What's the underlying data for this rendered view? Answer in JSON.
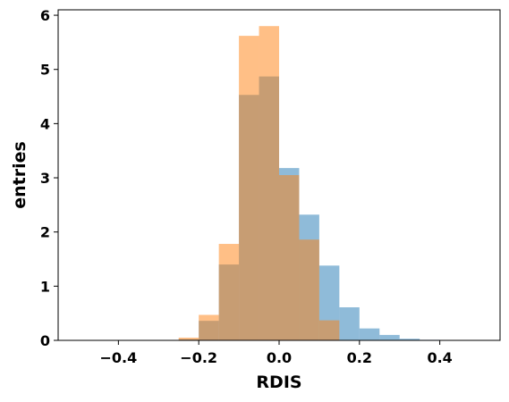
{
  "chart_data": {
    "type": "bar",
    "title": "",
    "xlabel": "RDIS",
    "ylabel": "entries",
    "xlim": [
      -0.55,
      0.55
    ],
    "ylim": [
      0,
      6.1
    ],
    "xticks": [
      -0.4,
      -0.2,
      0.0,
      0.2,
      0.4
    ],
    "xtick_labels": [
      "−0.4",
      "−0.2",
      "0.0",
      "0.2",
      "0.4"
    ],
    "yticks": [
      0,
      1,
      2,
      3,
      4,
      5,
      6
    ],
    "ytick_labels": [
      "0",
      "1",
      "2",
      "3",
      "4",
      "5",
      "6"
    ],
    "grid": false,
    "legend": false,
    "bin_edges": [
      -0.5,
      -0.45,
      -0.4,
      -0.35,
      -0.3,
      -0.25,
      -0.2,
      -0.15,
      -0.1,
      -0.05,
      0.0,
      0.05,
      0.1,
      0.15,
      0.2,
      0.25,
      0.3,
      0.35,
      0.4,
      0.45,
      0.5
    ],
    "series": [
      {
        "color": "#1f77b4",
        "alpha": 0.5,
        "values": [
          0,
          0,
          0,
          0,
          0,
          0.02,
          0.36,
          1.4,
          4.53,
          4.87,
          3.18,
          2.32,
          1.38,
          0.61,
          0.22,
          0.1,
          0.03,
          0.01,
          0,
          0
        ]
      },
      {
        "color": "#ff7f0e",
        "alpha": 0.5,
        "values": [
          0,
          0,
          0,
          0,
          0,
          0.05,
          0.47,
          1.78,
          5.62,
          5.8,
          3.05,
          1.86,
          0.37,
          0,
          0,
          0,
          0,
          0,
          0,
          0
        ]
      }
    ]
  }
}
